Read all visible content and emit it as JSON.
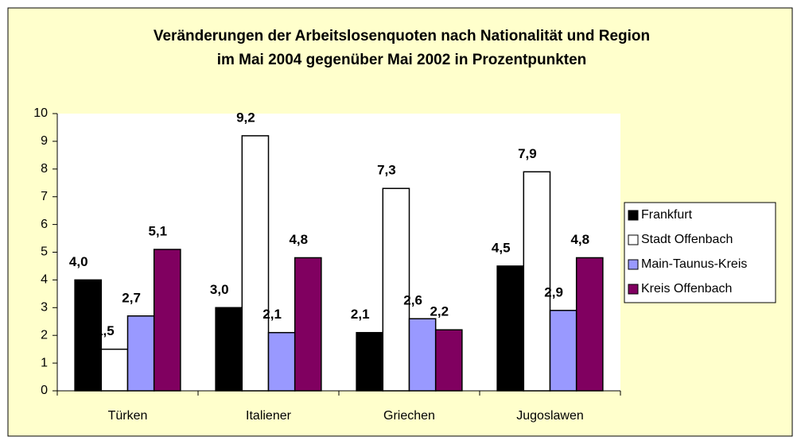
{
  "chart_data": {
    "type": "bar",
    "title": [
      "Veränderungen der Arbeitslosenquoten nach Nationalität und Region",
      "im Mai 2004 gegenüber Mai 2002 in Prozentpunkten"
    ],
    "categories": [
      "Türken",
      "Italiener",
      "Griechen",
      "Jugoslawen"
    ],
    "series": [
      {
        "name": "Frankfurt",
        "color": "#000000",
        "values": [
          4.0,
          3.0,
          2.1,
          4.5
        ],
        "value_labels": [
          "4,0",
          "3,0",
          "2,1",
          "4,5"
        ]
      },
      {
        "name": "Stadt Offenbach",
        "color": "#ffffff",
        "values": [
          1.5,
          9.2,
          7.3,
          7.9
        ],
        "value_labels": [
          "1,5",
          "9,2",
          "7,3",
          "7,9"
        ]
      },
      {
        "name": "Main-Taunus-Kreis",
        "color": "#9999ff",
        "values": [
          2.7,
          2.1,
          2.6,
          2.9
        ],
        "value_labels": [
          "2,7",
          "2,1",
          "2,6",
          "2,9"
        ]
      },
      {
        "name": "Kreis Offenbach",
        "color": "#800060",
        "values": [
          5.1,
          4.8,
          2.2,
          4.8
        ],
        "value_labels": [
          "5,1",
          "4,8",
          "2,2",
          "4,8"
        ]
      }
    ],
    "ylim": [
      0,
      10
    ],
    "yticks": [
      0,
      1,
      2,
      3,
      4,
      5,
      6,
      7,
      8,
      9,
      10
    ],
    "grid": false,
    "legend": "right"
  }
}
